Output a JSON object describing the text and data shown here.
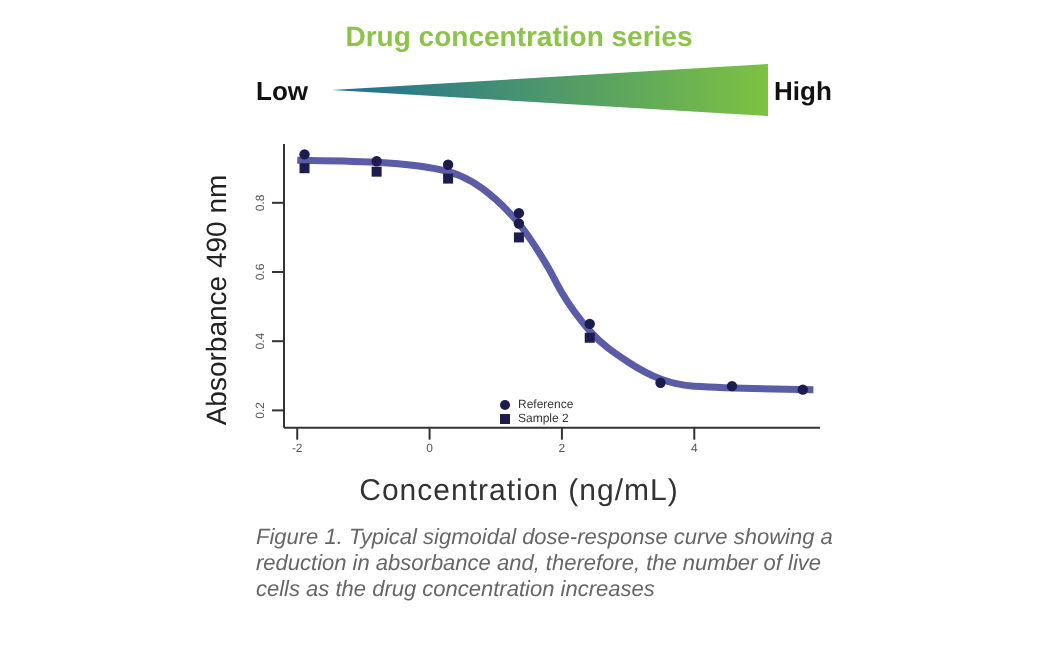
{
  "chart_data": {
    "type": "scatter",
    "title": "Drug concentration series",
    "xlabel": "Concentration (ng/mL)",
    "ylabel": "Absorbance 490 nm",
    "xlim": [
      -2.2,
      5.9
    ],
    "xticks": [
      -2,
      0,
      2,
      4
    ],
    "ylim": [
      0.15,
      0.97
    ],
    "yticks": [
      0.2,
      0.4,
      0.6,
      0.8
    ],
    "grid": false,
    "legend": "bottom",
    "series": [
      {
        "type": "line",
        "marker": "none",
        "color": "#5a5ca8",
        "x": [
          -2,
          -0.8,
          0.28,
          1,
          1.35,
          1.8,
          2,
          2.42,
          3,
          3.5,
          4,
          5.8
        ],
        "values": [
          0.923,
          0.917,
          0.89,
          0.81,
          0.74,
          0.61,
          0.54,
          0.43,
          0.34,
          0.29,
          0.27,
          0.26
        ]
      },
      {
        "name": "Reference",
        "marker": "circle",
        "color": "#1c1c4f",
        "x": [
          -1.89,
          -0.8,
          0.28,
          1.35,
          1.35,
          2.42,
          3.49,
          4.57,
          5.64
        ],
        "values": [
          0.94,
          0.92,
          0.91,
          0.77,
          0.74,
          0.45,
          0.28,
          0.27,
          0.26
        ]
      },
      {
        "name": "Sample 2",
        "marker": "square",
        "color": "#1c1c4f",
        "x": [
          -1.89,
          -0.8,
          0.28,
          1.35,
          2.42
        ],
        "values": [
          0.9,
          0.89,
          0.87,
          0.7,
          0.41
        ]
      }
    ],
    "annotations": [
      "Low",
      "High",
      "Figure 1. Typical sigmoidal dose-response curve showing a reduction in absorbance and, therefore, the number of live cells as the drug concentration increases"
    ]
  }
}
